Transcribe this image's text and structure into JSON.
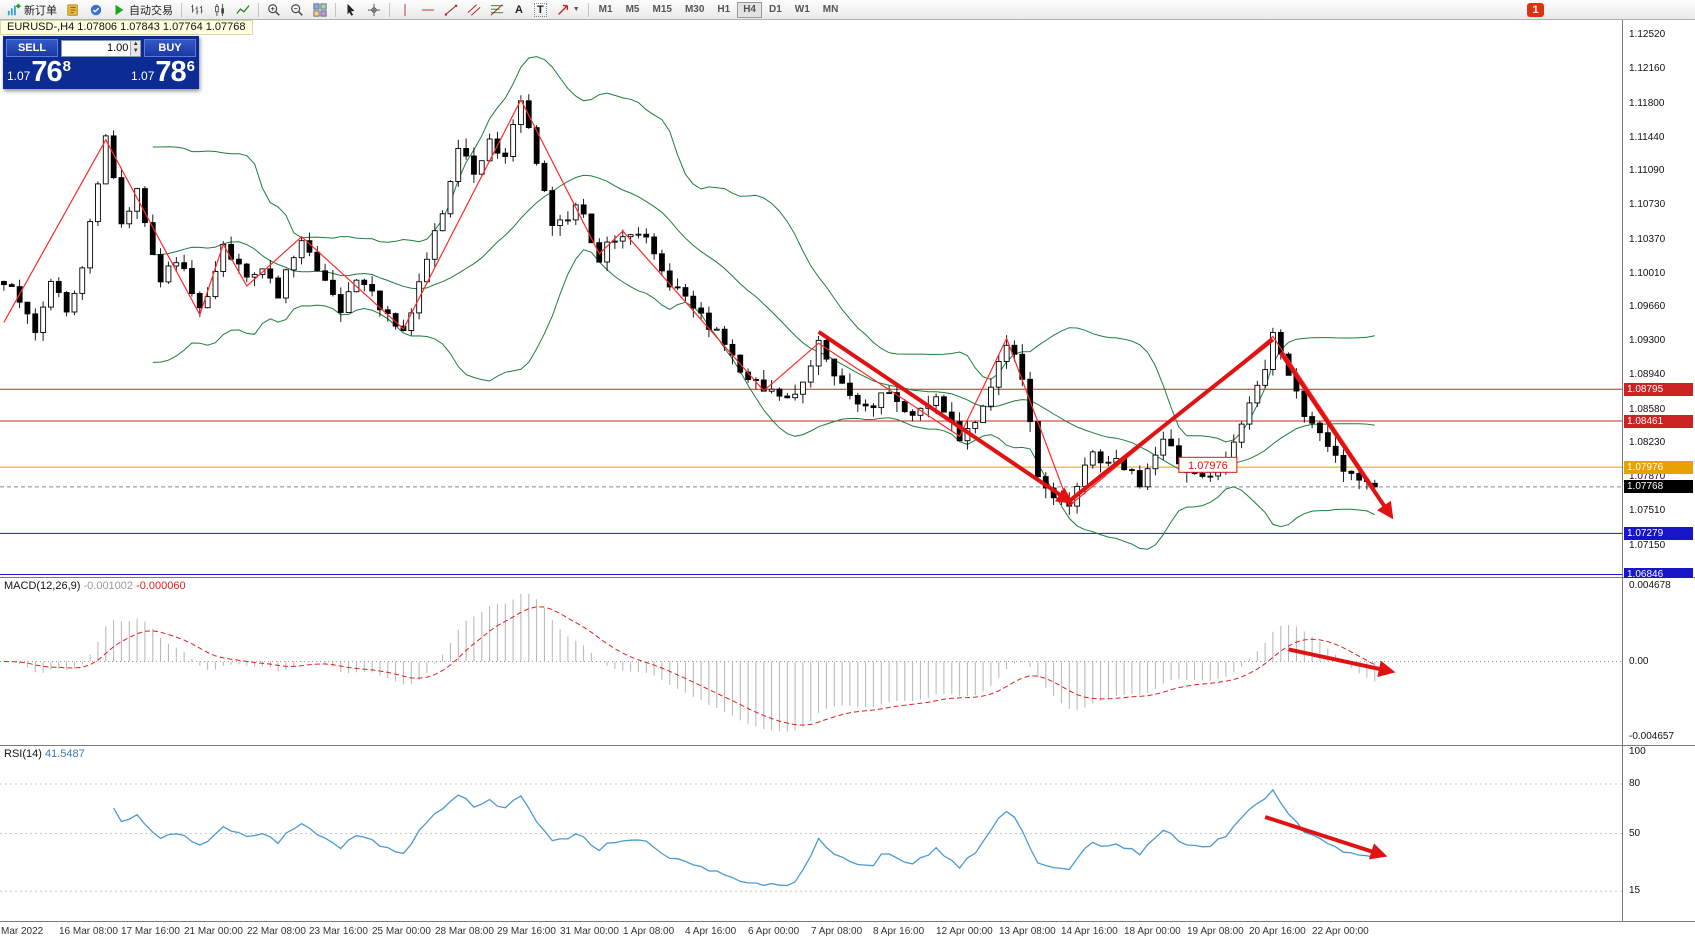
{
  "toolbar": {
    "new_order_label": "新订单",
    "autotrading_label": "自动交易",
    "text_tool_label": "A",
    "label_tool_label": "T",
    "timeframes": [
      "M1",
      "M5",
      "M15",
      "M30",
      "H1",
      "H4",
      "D1",
      "W1",
      "MN"
    ],
    "active_timeframe": "H4",
    "notification_count": "1"
  },
  "chart": {
    "header": "EURUSD-,H4  1.07806 1.07843 1.07764 1.07768"
  },
  "trade_panel": {
    "sell_label": "SELL",
    "buy_label": "BUY",
    "volume": "1.00",
    "sell_price": {
      "prefix": "1.07",
      "big": "76",
      "sup": "8"
    },
    "buy_price": {
      "prefix": "1.07",
      "big": "78",
      "sup": "6"
    }
  },
  "price_scale": {
    "ticks": [
      "1.12520",
      "1.12160",
      "1.11800",
      "1.11440",
      "1.11090",
      "1.10730",
      "1.10370",
      "1.10010",
      "1.09660",
      "1.09300",
      "1.08940",
      "1.08580",
      "1.08230",
      "1.07870",
      "1.07510",
      "1.07150"
    ]
  },
  "macd": {
    "name": "MACD(12,26,9)",
    "value1": "-0.001002",
    "value2": "-0.000060",
    "scale_top": "0.004678",
    "scale_mid": "0.00",
    "scale_bottom": "-0.004657"
  },
  "rsi": {
    "name": "RSI(14)",
    "value": "41.5487",
    "scale": [
      {
        "label": "100",
        "value": 100
      },
      {
        "label": "80",
        "value": 80
      },
      {
        "label": "50",
        "value": 50
      },
      {
        "label": "15",
        "value": 15
      }
    ],
    "levels": [
      80,
      50,
      15
    ]
  },
  "time_axis": [
    "Mar 2022",
    "16 Mar 08:00",
    "17 Mar 16:00",
    "21 Mar 00:00",
    "22 Mar 08:00",
    "23 Mar 16:00",
    "25 Mar 00:00",
    "28 Mar 08:00",
    "29 Mar 16:00",
    "31 Mar 00:00",
    "1 Apr 08:00",
    "4 Apr 16:00",
    "6 Apr 00:00",
    "7 Apr 08:00",
    "8 Apr 16:00",
    "12 Apr 00:00",
    "13 Apr 08:00",
    "14 Apr 16:00",
    "18 Apr 00:00",
    "19 Apr 08:00",
    "20 Apr 16:00",
    "22 Apr 00:00"
  ],
  "chart_data": {
    "type": "candlestick",
    "symbol": "EURUSD-",
    "timeframe": "H4",
    "n_candles": 176,
    "seed": 12,
    "noise": 0.0016,
    "price_min": 1.0682,
    "price_max": 1.1268,
    "last_candle": [
      1.07806,
      1.07843,
      1.07764,
      1.07768
    ],
    "anchors": [
      [
        0,
        1.0993
      ],
      [
        2,
        1.0968
      ],
      [
        4,
        1.0942
      ],
      [
        6,
        1.0985
      ],
      [
        8,
        1.0965
      ],
      [
        10,
        1.101
      ],
      [
        13,
        1.1142
      ],
      [
        15,
        1.106
      ],
      [
        17,
        1.1085
      ],
      [
        20,
        1.1
      ],
      [
        22,
        1.102
      ],
      [
        25,
        1.0958
      ],
      [
        28,
        1.1032
      ],
      [
        31,
        1.099
      ],
      [
        33,
        1.101
      ],
      [
        35,
        1.098
      ],
      [
        38,
        1.104
      ],
      [
        41,
        1.0995
      ],
      [
        43,
        1.0965
      ],
      [
        45,
        1.1
      ],
      [
        48,
        1.097
      ],
      [
        51,
        1.0943
      ],
      [
        53,
        1.099
      ],
      [
        56,
        1.1065
      ],
      [
        58,
        1.1135
      ],
      [
        60,
        1.1108
      ],
      [
        62,
        1.114
      ],
      [
        64,
        1.112
      ],
      [
        66,
        1.1184
      ],
      [
        68,
        1.112
      ],
      [
        70,
        1.1045
      ],
      [
        73,
        1.1075
      ],
      [
        76,
        1.102
      ],
      [
        79,
        1.1048
      ],
      [
        82,
        1.1035
      ],
      [
        85,
        1.099
      ],
      [
        88,
        1.096
      ],
      [
        91,
        1.0935
      ],
      [
        94,
        1.0905
      ],
      [
        97,
        1.088
      ],
      [
        100,
        1.0865
      ],
      [
        102,
        1.089
      ],
      [
        104,
        1.0928
      ],
      [
        107,
        1.0885
      ],
      [
        110,
        1.0855
      ],
      [
        113,
        1.0875
      ],
      [
        116,
        1.085
      ],
      [
        119,
        1.087
      ],
      [
        122,
        1.083
      ],
      [
        125,
        1.086
      ],
      [
        128,
        1.0933
      ],
      [
        130,
        1.089
      ],
      [
        132,
        1.0795
      ],
      [
        134,
        1.077
      ],
      [
        136,
        1.0758
      ],
      [
        139,
        1.0815
      ],
      [
        142,
        1.08
      ],
      [
        145,
        1.078
      ],
      [
        148,
        1.0822
      ],
      [
        151,
        1.0795
      ],
      [
        154,
        1.0785
      ],
      [
        157,
        1.0825
      ],
      [
        160,
        1.088
      ],
      [
        162,
        1.0935
      ],
      [
        164,
        1.09
      ],
      [
        166,
        1.0855
      ],
      [
        168,
        1.083
      ],
      [
        170,
        1.0802
      ],
      [
        172,
        1.0785
      ],
      [
        174,
        1.079
      ],
      [
        175,
        1.0777
      ]
    ],
    "bollinger": {
      "period": 20,
      "deviation": 2,
      "color": "#1e7d3c"
    },
    "zigzag": [
      [
        0,
        1.095
      ],
      [
        13,
        1.1142
      ],
      [
        25,
        1.0958
      ],
      [
        28,
        1.1032
      ],
      [
        31,
        1.0988
      ],
      [
        38,
        1.104
      ],
      [
        51,
        1.0943
      ],
      [
        66,
        1.1184
      ],
      [
        76,
        1.1022
      ],
      [
        79,
        1.1046
      ],
      [
        97,
        1.0878
      ],
      [
        104,
        1.0928
      ],
      [
        122,
        1.083
      ],
      [
        128,
        1.0933
      ],
      [
        136,
        1.0757
      ],
      [
        162,
        1.0935
      ],
      [
        175,
        1.0775
      ]
    ],
    "levels": [
      {
        "price": 1.08795,
        "label": "1.08795",
        "color": "#cc2222"
      },
      {
        "price": 1.08461,
        "label": "1.08461",
        "color": "#cc2222"
      },
      {
        "price": 1.07976,
        "label": "1.07976",
        "color": "#e8a200"
      },
      {
        "price": 1.07279,
        "label": "1.07279",
        "color": "#1616c8"
      },
      {
        "price": 1.06846,
        "label": "1.06846",
        "color": "#1616c8"
      }
    ],
    "current_price": {
      "value": 1.07768,
      "label": "1.07768"
    },
    "annotation": {
      "text": "1.07976",
      "idx": 150,
      "price": 1.08
    },
    "thick_arrows": [
      {
        "from": [
          104,
          1.094
        ],
        "to": [
          136,
          1.0762
        ],
        "head": true
      },
      {
        "from": [
          136,
          1.0762
        ],
        "to": [
          162,
          1.0932
        ],
        "head": false
      },
      {
        "from": [
          163,
          1.0918
        ],
        "to": [
          177,
          1.0747
        ],
        "head": true
      }
    ],
    "macd_arrow": {
      "from": [
        164,
        0.16
      ],
      "to": [
        177,
        -0.13
      ]
    },
    "rsi_arrow": {
      "from": [
        161,
        60
      ],
      "to": [
        176,
        37
      ]
    }
  }
}
